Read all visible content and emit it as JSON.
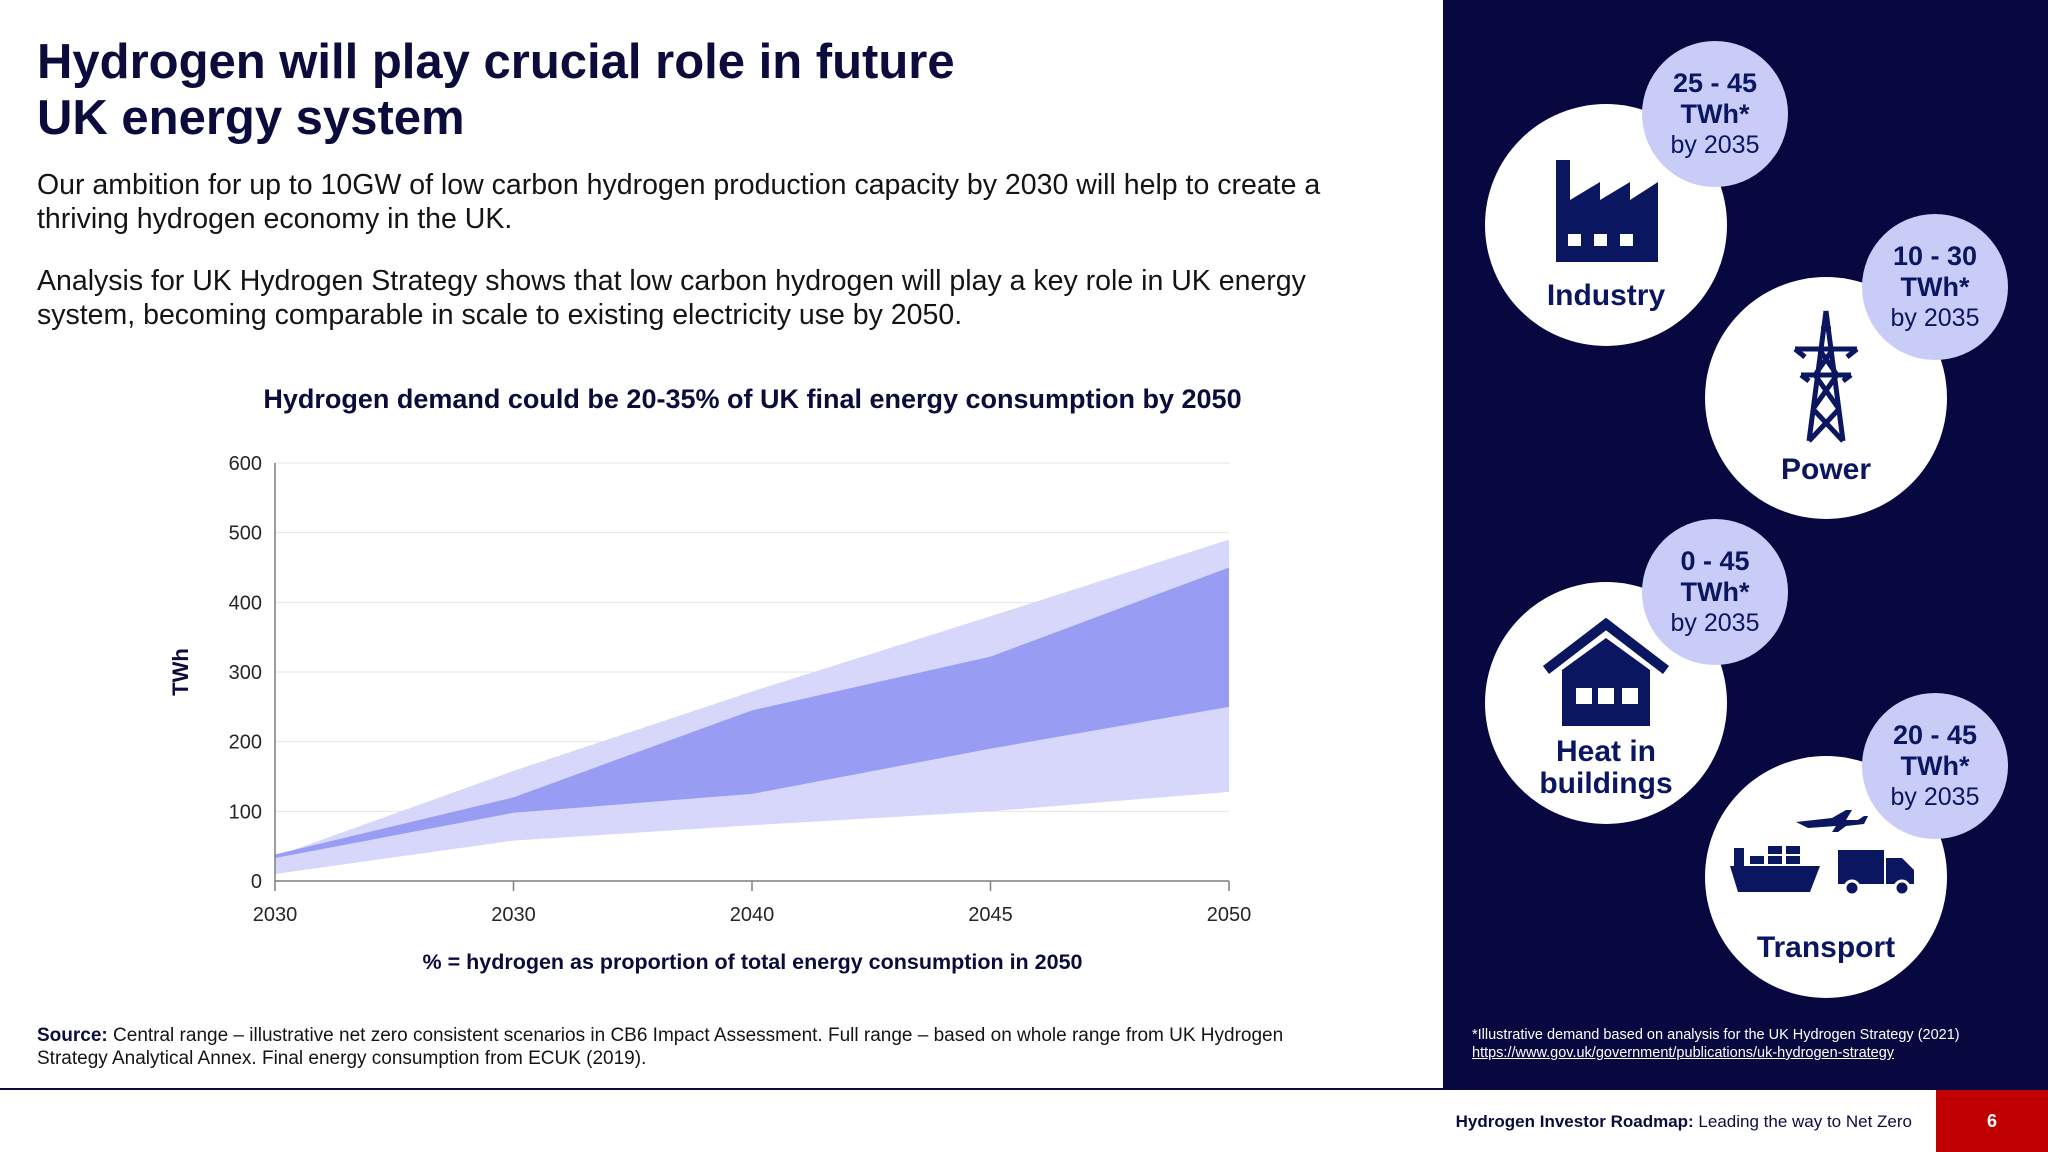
{
  "header": {
    "title_line1": "Hydrogen will play crucial role in future",
    "title_line2": "UK energy system"
  },
  "intro": {
    "p1": "Our ambition for up to 10GW of low carbon hydrogen production capacity by 2030 will help to create a thriving hydrogen economy in the UK.",
    "p2": "Analysis for UK Hydrogen Strategy shows that low carbon hydrogen will play a key role in UK energy system, becoming comparable in scale to existing electricity use by 2050."
  },
  "chart_data": {
    "type": "area",
    "title": "Hydrogen demand could be 20-35% of UK final energy consumption by 2050",
    "xlabel": "% = hydrogen as proportion of total energy consumption in 2050",
    "ylabel": "TWh",
    "categories": [
      "2030",
      "2030",
      "2040",
      "2045",
      "2050"
    ],
    "ylim": [
      0,
      600
    ],
    "yticks": [
      0,
      100,
      200,
      300,
      400,
      500,
      600
    ],
    "grid": true,
    "bands": [
      {
        "kind": "full",
        "color": "#d6d7fb",
        "upper": [
          35,
          158,
          272,
          380,
          490
        ],
        "lower": [
          10,
          58,
          80,
          100,
          128
        ]
      },
      {
        "kind": "central",
        "color": "#989cf2",
        "upper": [
          38,
          120,
          245,
          322,
          450
        ],
        "lower": [
          33,
          98,
          125,
          190,
          250
        ]
      }
    ]
  },
  "source": {
    "label": "Source:",
    "text": " Central range – illustrative net zero consistent scenarios in CB6 Impact Assessment. Full range – based on whole range from UK Hydrogen Strategy Analytical Annex. Final energy consumption from ECUK (2019)."
  },
  "sectors": [
    {
      "label_line1": "Industry",
      "label_line2": "",
      "icon": "factory-icon",
      "range": "25 - 45",
      "unit": "TWh*",
      "by": "by 2035"
    },
    {
      "label_line1": "Power",
      "label_line2": "",
      "icon": "pylon-icon",
      "range": "10 - 30",
      "unit": "TWh*",
      "by": "by 2035"
    },
    {
      "label_line1": "Heat in",
      "label_line2": "buildings",
      "icon": "house-icon",
      "range": "0 - 45",
      "unit": "TWh*",
      "by": "by 2035"
    },
    {
      "label_line1": "Transport",
      "label_line2": "",
      "icon": "transport-icon",
      "range": "20 - 45",
      "unit": "TWh*",
      "by": "by 2035"
    }
  ],
  "footnote": {
    "text": "*Illustrative demand based on analysis for the UK Hydrogen Strategy (2021)",
    "link": "https://www.gov.uk/government/publications/uk-hydrogen-strategy"
  },
  "footer": {
    "bold": "Hydrogen Investor Roadmap:",
    "rest": " Leading the way to Net Zero",
    "page": "6"
  },
  "colors": {
    "navy": "#080840",
    "accent_red": "#c00000",
    "badge": "#c9ccf7",
    "central_band": "#989cf2",
    "full_band": "#d6d7fb"
  }
}
